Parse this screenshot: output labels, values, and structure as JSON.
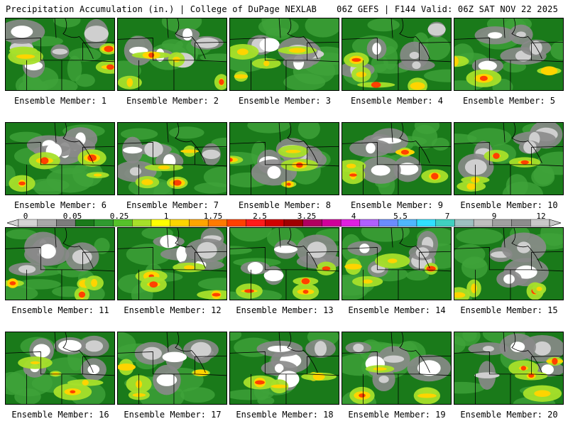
{
  "header": {
    "left_title": "Precipitation Accumulation (in.) | College of DuPage NEXLAB",
    "right_title": "06Z GEFS | F144 Valid: 06Z SAT NOV 22 2025"
  },
  "colorbar": {
    "tick_labels": [
      "0",
      "0.05",
      "0.25",
      "1",
      "1.75",
      "2.5",
      "3.25",
      "4",
      "5.5",
      "7",
      "9",
      "12"
    ],
    "colors": [
      "#d4d4d4",
      "#a8a8a8",
      "#7c7c7c",
      "#1a7a1a",
      "#2f9a2f",
      "#55c12a",
      "#a6e02a",
      "#ffff00",
      "#ffd400",
      "#ffa500",
      "#ff7a00",
      "#ff4000",
      "#ff1a1a",
      "#d10000",
      "#a00000",
      "#b00060",
      "#d0009a",
      "#e020e0",
      "#b060ff",
      "#6b8cff",
      "#4fb7ff",
      "#30e0ff",
      "#40d0c0",
      "#9ec0c0",
      "#bfbfbf",
      "#a0a0a0",
      "#8c8c8c",
      "#c8c8c8"
    ]
  },
  "members": [
    {
      "label": "Ensemble Member: 1"
    },
    {
      "label": "Ensemble Member: 2"
    },
    {
      "label": "Ensemble Member: 3"
    },
    {
      "label": "Ensemble Member: 4"
    },
    {
      "label": "Ensemble Member: 5"
    },
    {
      "label": "Ensemble Member: 6"
    },
    {
      "label": "Ensemble Member: 7"
    },
    {
      "label": "Ensemble Member: 8"
    },
    {
      "label": "Ensemble Member: 9"
    },
    {
      "label": "Ensemble Member: 10"
    },
    {
      "label": "Ensemble Member: 11"
    },
    {
      "label": "Ensemble Member: 12"
    },
    {
      "label": "Ensemble Member: 13"
    },
    {
      "label": "Ensemble Member: 14"
    },
    {
      "label": "Ensemble Member: 15"
    },
    {
      "label": "Ensemble Member: 16"
    },
    {
      "label": "Ensemble Member: 17"
    },
    {
      "label": "Ensemble Member: 18"
    },
    {
      "label": "Ensemble Member: 19"
    },
    {
      "label": "Ensemble Member: 20"
    }
  ]
}
